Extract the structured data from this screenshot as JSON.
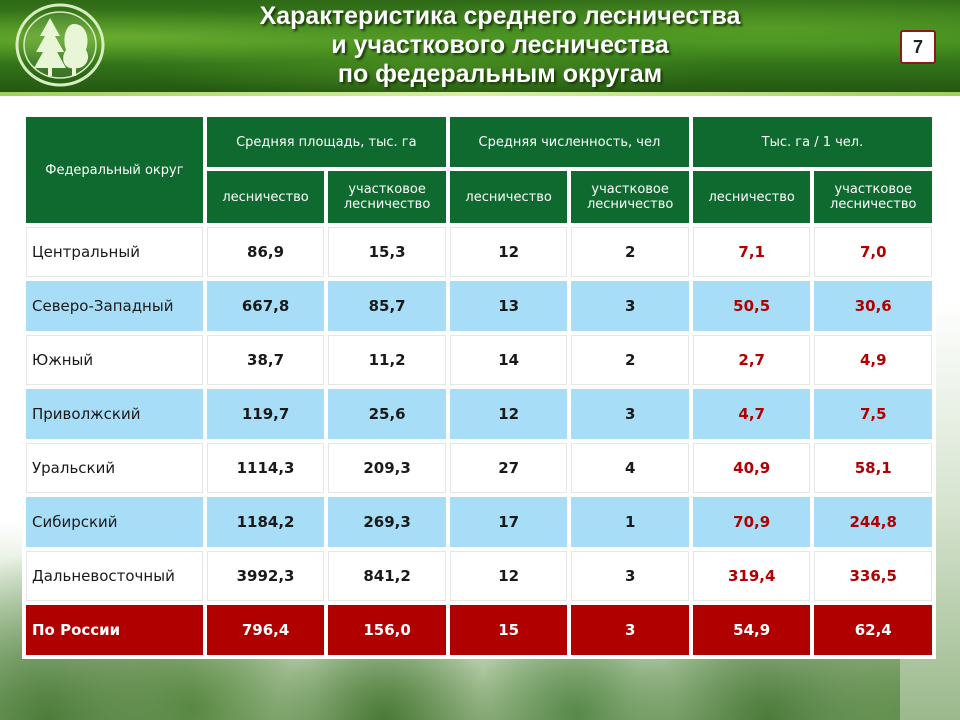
{
  "header": {
    "title_lines": [
      "Характеристика среднего лесничества",
      "и участкового лесничества",
      "по федеральным округам"
    ],
    "page_number": "7",
    "logo_icon": "spruce-tree-logo-icon"
  },
  "colors": {
    "header_cell": "#0f6a2f",
    "row_alt": "#a8ddf7",
    "total_row": "#b00000",
    "ratio_value": "#b00000"
  },
  "table": {
    "col_region": "Федеральный округ",
    "group_area": "Средняя площадь, тыс. га",
    "group_staff": "Средняя численность, чел",
    "group_ratio": "Тыс. га / 1 чел.",
    "sub_forestry": "лесничество",
    "sub_district": "участковое лесничество",
    "rows": [
      {
        "region": "Центральный",
        "area_f": "86,9",
        "area_d": "15,3",
        "staff_f": "12",
        "staff_d": "2",
        "ratio_f": "7,1",
        "ratio_d": "7,0"
      },
      {
        "region": "Северо-Западный",
        "area_f": "667,8",
        "area_d": "85,7",
        "staff_f": "13",
        "staff_d": "3",
        "ratio_f": "50,5",
        "ratio_d": "30,6"
      },
      {
        "region": "Южный",
        "area_f": "38,7",
        "area_d": "11,2",
        "staff_f": "14",
        "staff_d": "2",
        "ratio_f": "2,7",
        "ratio_d": "4,9"
      },
      {
        "region": "Приволжский",
        "area_f": "119,7",
        "area_d": "25,6",
        "staff_f": "12",
        "staff_d": "3",
        "ratio_f": "4,7",
        "ratio_d": "7,5"
      },
      {
        "region": "Уральский",
        "area_f": "1114,3",
        "area_d": "209,3",
        "staff_f": "27",
        "staff_d": "4",
        "ratio_f": "40,9",
        "ratio_d": "58,1"
      },
      {
        "region": "Сибирский",
        "area_f": "1184,2",
        "area_d": "269,3",
        "staff_f": "17",
        "staff_d": "1",
        "ratio_f": "70,9",
        "ratio_d": "244,8"
      },
      {
        "region": "Дальневосточный",
        "area_f": "3992,3",
        "area_d": "841,2",
        "staff_f": "12",
        "staff_d": "3",
        "ratio_f": "319,4",
        "ratio_d": "336,5"
      }
    ],
    "total": {
      "region": "По России",
      "area_f": "796,4",
      "area_d": "156,0",
      "staff_f": "15",
      "staff_d": "3",
      "ratio_f": "54,9",
      "ratio_d": "62,4"
    }
  }
}
